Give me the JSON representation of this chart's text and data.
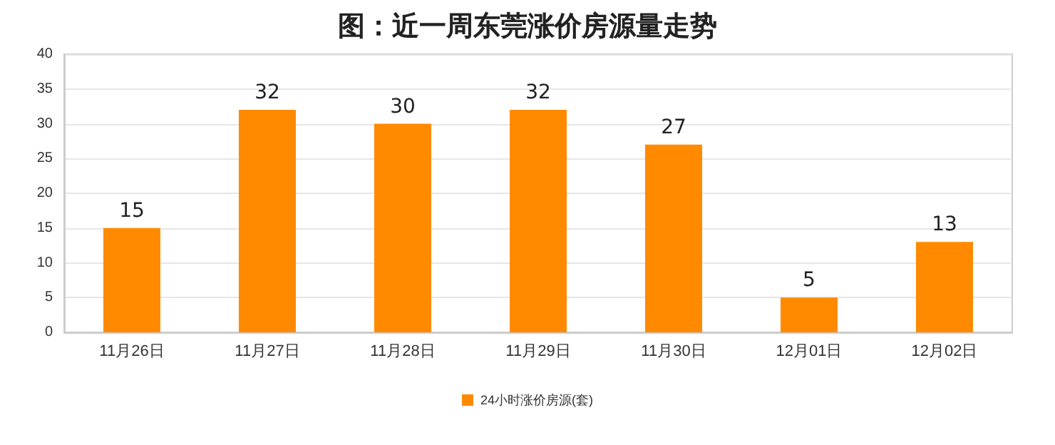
{
  "chart_data": {
    "type": "bar",
    "title": "图：近一周东莞涨价房源量走势",
    "categories": [
      "11月26日",
      "11月27日",
      "11月28日",
      "11月29日",
      "11月30日",
      "12月01日",
      "12月02日"
    ],
    "series": [
      {
        "name": "24小时涨价房源(套)",
        "color": "#ff8a00",
        "values": [
          15,
          32,
          30,
          32,
          27,
          5,
          13
        ]
      }
    ],
    "ylim": [
      0,
      40
    ],
    "yticks": [
      0,
      5,
      10,
      15,
      20,
      25,
      30,
      35,
      40
    ],
    "grid": "y",
    "legend": "bottom",
    "data_labels": true
  }
}
